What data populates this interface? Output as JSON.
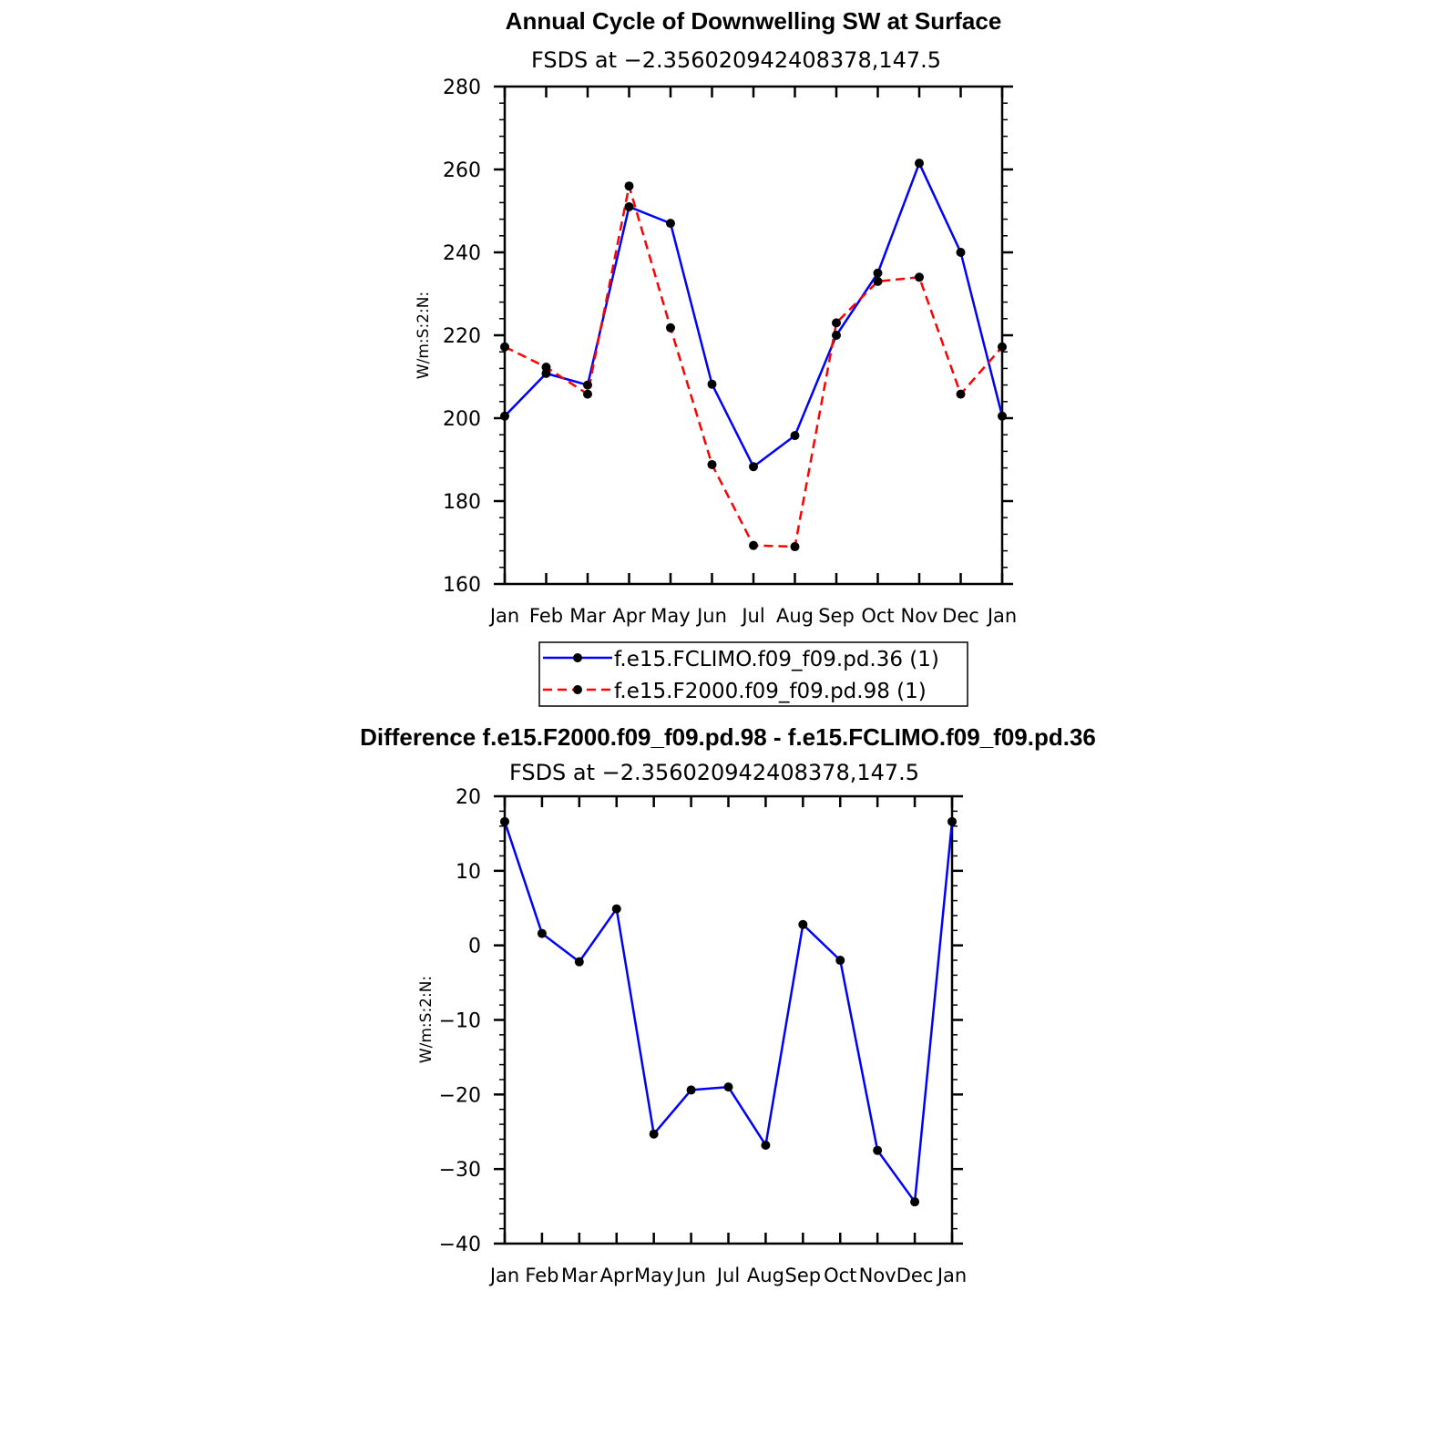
{
  "chart_data": [
    {
      "type": "line",
      "title": "Annual Cycle of Downwelling SW at Surface",
      "subtitle": "FSDS at −2.356020942408378,147.5",
      "ylabel": "W/m:S:2:N:",
      "xlabel": "",
      "categories": [
        "Jan",
        "Feb",
        "Mar",
        "Apr",
        "May",
        "Jun",
        "Jul",
        "Aug",
        "Sep",
        "Oct",
        "Nov",
        "Dec",
        "Jan"
      ],
      "ylim": [
        160,
        280
      ],
      "yticks": [
        "160",
        "180",
        "200",
        "220",
        "240",
        "260",
        "280"
      ],
      "series": [
        {
          "name": "f.e15.FCLIMO.f09_f09.pd.36 (1)",
          "color": "#0000ff",
          "dash": "solid",
          "values": [
            200.5,
            210.8,
            208.0,
            251.0,
            247.0,
            208.2,
            188.3,
            195.8,
            220.0,
            235.0,
            261.5,
            240.0,
            200.5
          ]
        },
        {
          "name": "f.e15.F2000.f09_f09.pd.98 (1)",
          "color": "#ff0000",
          "dash": "dashed",
          "values": [
            217.2,
            212.3,
            205.8,
            256.0,
            221.8,
            188.8,
            169.3,
            169.0,
            223.0,
            233.0,
            234.0,
            205.8,
            217.2
          ]
        }
      ],
      "legend": "bottom"
    },
    {
      "type": "line",
      "title": "Difference f.e15.F2000.f09_f09.pd.98 - f.e15.FCLIMO.f09_f09.pd.36",
      "subtitle": "FSDS at −2.356020942408378,147.5",
      "ylabel": "W/m:S:2:N:",
      "xlabel": "",
      "categories": [
        "Jan",
        "Feb",
        "Mar",
        "Apr",
        "May",
        "Jun",
        "Jul",
        "Aug",
        "Sep",
        "Oct",
        "Nov",
        "Dec",
        "Jan"
      ],
      "ylim": [
        -40,
        20
      ],
      "yticks": [
        "−40",
        "−30",
        "−20",
        "−10",
        "0",
        "10",
        "20"
      ],
      "series": [
        {
          "name": "Difference",
          "color": "#0000ff",
          "dash": "solid",
          "values": [
            16.6,
            1.6,
            -2.2,
            4.9,
            -25.3,
            -19.4,
            -19.0,
            -26.8,
            2.8,
            -2.0,
            -27.5,
            -34.4,
            16.6
          ]
        }
      ]
    }
  ]
}
